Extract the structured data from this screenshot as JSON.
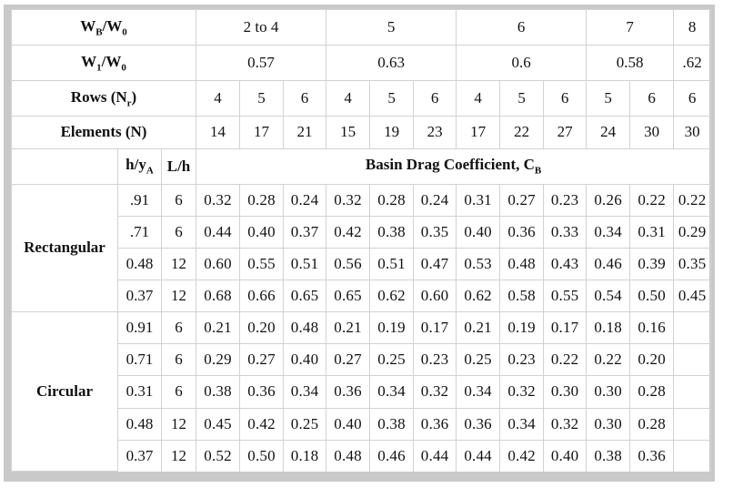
{
  "header": {
    "wb_w0_label": "WB/W0",
    "w1_w0_label": "W1/W0",
    "rows_label": "Rows (Nr)",
    "elements_label": "Elements (N)",
    "wb_w0_values": [
      "2 to 4",
      "5",
      "6",
      "7",
      "8"
    ],
    "w1_w0_values": [
      "0.57",
      "0.63",
      "0.6",
      "0.58",
      ".62"
    ],
    "rows_values": [
      "4",
      "5",
      "6",
      "4",
      "5",
      "6",
      "4",
      "5",
      "6",
      "5",
      "6",
      "6"
    ],
    "elements_values": [
      "14",
      "17",
      "21",
      "15",
      "19",
      "23",
      "17",
      "22",
      "27",
      "24",
      "30",
      "30"
    ]
  },
  "subheader": {
    "h_ya": "h/yA",
    "l_h": "L/h",
    "cb_title": "Basin Drag Coefficient, CB"
  },
  "groups": [
    {
      "name": "Rectangular",
      "rows": [
        {
          "h": ".91",
          "l": "6",
          "values": [
            "0.32",
            "0.28",
            "0.24",
            "0.32",
            "0.28",
            "0.24",
            "0.31",
            "0.27",
            "0.23",
            "0.26",
            "0.22",
            "0.22"
          ]
        },
        {
          "h": ".71",
          "l": "6",
          "values": [
            "0.44",
            "0.40",
            "0.37",
            "0.42",
            "0.38",
            "0.35",
            "0.40",
            "0.36",
            "0.33",
            "0.34",
            "0.31",
            "0.29"
          ]
        },
        {
          "h": "0.48",
          "l": "12",
          "values": [
            "0.60",
            "0.55",
            "0.51",
            "0.56",
            "0.51",
            "0.47",
            "0.53",
            "0.48",
            "0.43",
            "0.46",
            "0.39",
            "0.35"
          ]
        },
        {
          "h": "0.37",
          "l": "12",
          "values": [
            "0.68",
            "0.66",
            "0.65",
            "0.65",
            "0.62",
            "0.60",
            "0.62",
            "0.58",
            "0.55",
            "0.54",
            "0.50",
            "0.45"
          ]
        }
      ]
    },
    {
      "name": "Circular",
      "rows": [
        {
          "h": "0.91",
          "l": "6",
          "values": [
            "0.21",
            "0.20",
            "0.48",
            "0.21",
            "0.19",
            "0.17",
            "0.21",
            "0.19",
            "0.17",
            "0.18",
            "0.16",
            ""
          ]
        },
        {
          "h": "0.71",
          "l": "6",
          "values": [
            "0.29",
            "0.27",
            "0.40",
            "0.27",
            "0.25",
            "0.23",
            "0.25",
            "0.23",
            "0.22",
            "0.22",
            "0.20",
            ""
          ]
        },
        {
          "h": "0.31",
          "l": "6",
          "values": [
            "0.38",
            "0.36",
            "0.34",
            "0.36",
            "0.34",
            "0.32",
            "0.34",
            "0.32",
            "0.30",
            "0.30",
            "0.28",
            ""
          ]
        },
        {
          "h": "0.48",
          "l": "12",
          "values": [
            "0.45",
            "0.42",
            "0.25",
            "0.40",
            "0.38",
            "0.36",
            "0.36",
            "0.34",
            "0.32",
            "0.30",
            "0.28",
            ""
          ]
        },
        {
          "h": "0.37",
          "l": "12",
          "values": [
            "0.52",
            "0.50",
            "0.18",
            "0.48",
            "0.46",
            "0.44",
            "0.44",
            "0.42",
            "0.40",
            "0.38",
            "0.36",
            ""
          ]
        }
      ]
    }
  ]
}
